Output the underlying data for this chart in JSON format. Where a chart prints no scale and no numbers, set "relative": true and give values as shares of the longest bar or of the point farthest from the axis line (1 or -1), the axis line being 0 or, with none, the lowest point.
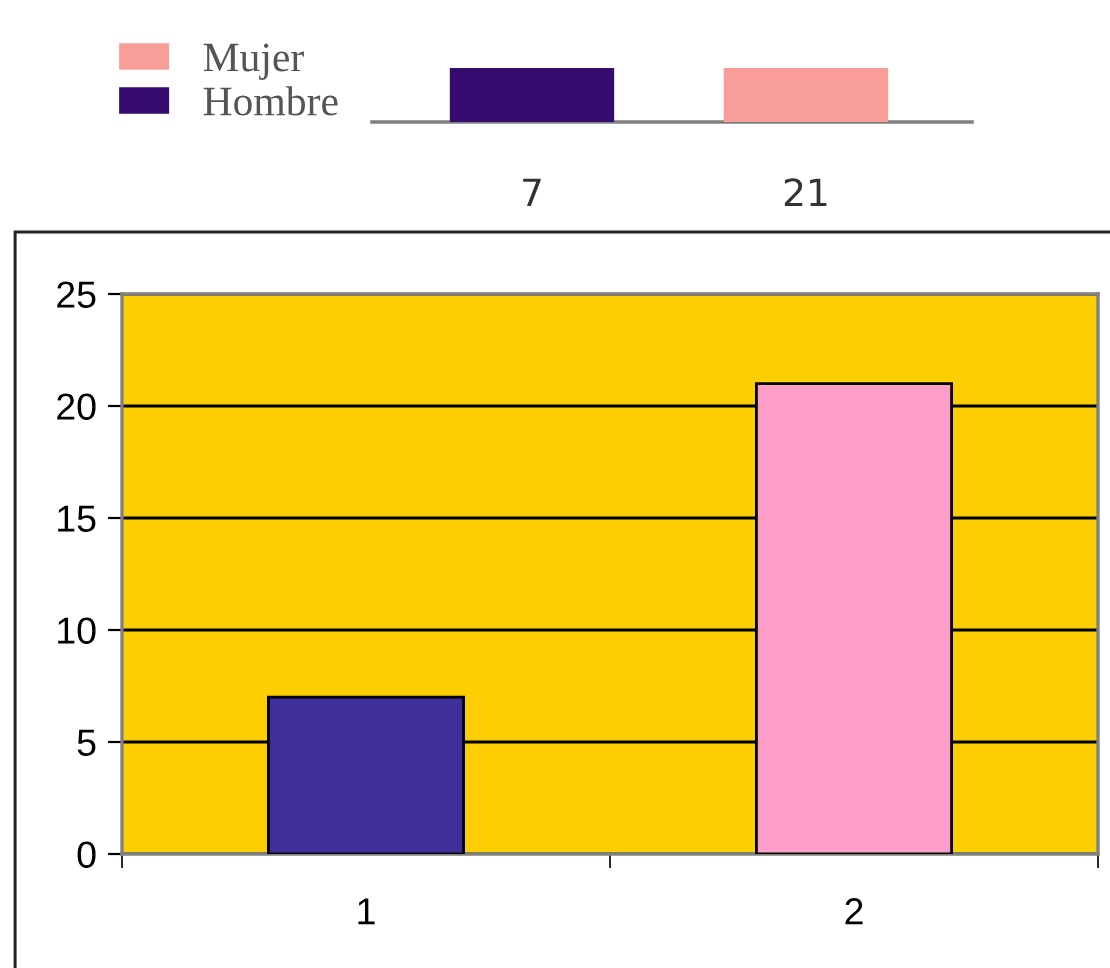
{
  "chart_data": [
    {
      "type": "bar",
      "relative": true,
      "stacked": true,
      "categories": [
        "7",
        "21"
      ],
      "series": [
        {
          "name": "Mujer",
          "color": "#f99d98",
          "values": [
            null,
            1
          ]
        },
        {
          "name": "Hombre",
          "color": "#360d6e",
          "values": [
            1,
            null
          ]
        }
      ],
      "legend": "left"
    },
    {
      "type": "bar",
      "categories": [
        "1",
        "2"
      ],
      "values": [
        7,
        21
      ],
      "colors": [
        "#3f2f9a",
        "#fd9dc8"
      ],
      "ylim": [
        0,
        25
      ],
      "yticks": [
        0,
        5,
        10,
        15,
        20,
        25
      ],
      "grid": "y"
    }
  ]
}
